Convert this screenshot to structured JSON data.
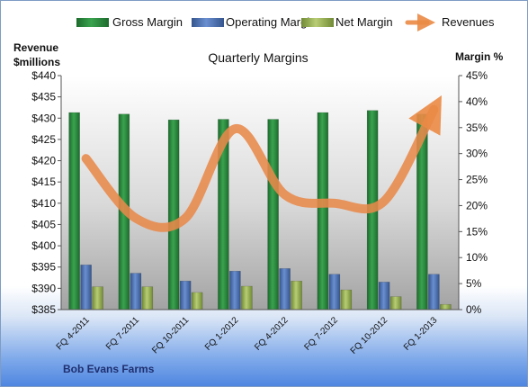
{
  "company": "Bob Evans Farms",
  "chart_data": {
    "type": "bar",
    "title": "Quarterly Margins",
    "categories": [
      "FQ 4-2011",
      "FQ 7-2011",
      "FQ 10-2011",
      "FQ 1-2012",
      "FQ 4-2012",
      "FQ 7-2012",
      "FQ 10-2012",
      "FQ 1-2013"
    ],
    "series": [
      {
        "name": "Gross Margin",
        "type": "bar",
        "axis": "right",
        "color": "#2e8b3e",
        "values": [
          37.9,
          37.6,
          36.5,
          36.6,
          36.6,
          37.9,
          38.3,
          37.6
        ]
      },
      {
        "name": "Operating Margin",
        "type": "bar",
        "axis": "right",
        "color": "#4a6fb0",
        "values": [
          8.6,
          7.0,
          5.5,
          7.4,
          7.9,
          6.8,
          5.3,
          6.8
        ]
      },
      {
        "name": "Net Margin",
        "type": "bar",
        "axis": "right",
        "color": "#9bb45a",
        "values": [
          4.4,
          4.4,
          3.3,
          4.5,
          5.5,
          3.8,
          2.5,
          1.0
        ]
      },
      {
        "name": "Revenues",
        "type": "line",
        "axis": "left",
        "color": "#e8894a",
        "values": [
          420.5,
          406.5,
          406.5,
          427.5,
          412.0,
          410.0,
          410.5,
          432.0
        ]
      }
    ],
    "yleft": {
      "label_line1": "Revenue",
      "label_line2": "$millions",
      "min": 385,
      "max": 440,
      "step": 5,
      "prefix": "$"
    },
    "yright": {
      "label": "Margin %",
      "min": 0,
      "max": 45,
      "step": 5,
      "suffix": "%"
    },
    "grid": false,
    "legend_position": "top"
  }
}
